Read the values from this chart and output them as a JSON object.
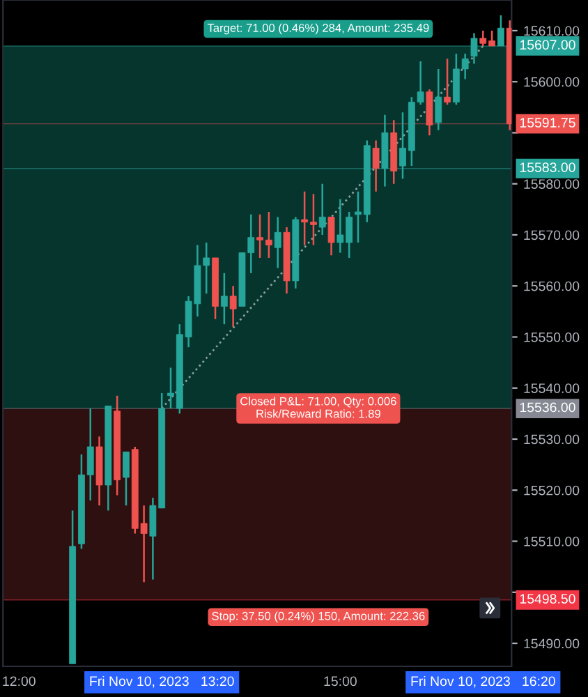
{
  "chart_data": {
    "type": "candlestick",
    "x": [
      12.5,
      12.5833,
      12.6667,
      12.75,
      12.8333,
      12.9167,
      13.0,
      13.0833,
      13.1667,
      13.25,
      13.3333,
      13.4167,
      13.5,
      13.5833,
      13.6667,
      13.75,
      13.8333,
      13.9167,
      14.0,
      14.0833,
      14.1667,
      14.25,
      14.3333,
      14.4167,
      14.5,
      14.5833,
      14.6667,
      14.75,
      14.8333,
      14.9167,
      15.0,
      15.0833,
      15.1667,
      15.25,
      15.3333,
      15.4167,
      15.5,
      15.5833,
      15.6667,
      15.75,
      15.8333,
      15.9167,
      16.0,
      16.0833,
      16.1667,
      16.25,
      16.3333,
      16.4167,
      16.5,
      16.5833
    ],
    "ohlc": [
      [
        15486,
        15516,
        15486,
        15509
      ],
      [
        15509.5,
        15527,
        15508.5,
        15523
      ],
      [
        15523,
        15536,
        15518,
        15528.5
      ],
      [
        15528.5,
        15530.5,
        15517,
        15521
      ],
      [
        15521,
        15536.5,
        15516,
        15536.5
      ],
      [
        15535.5,
        15538.5,
        15519,
        15522
      ],
      [
        15522.5,
        15527.5,
        15517,
        15527.5
      ],
      [
        15528,
        15528.5,
        15511.5,
        15512.5
      ],
      [
        15513.5,
        15517,
        15502,
        15511.5
      ],
      [
        15511,
        15518.5,
        15502.5,
        15517
      ],
      [
        15516.5,
        15539,
        15516.5,
        15536
      ],
      [
        15538.5,
        15544,
        15536,
        15539
      ],
      [
        15536,
        15552.5,
        15535,
        15550.5
      ],
      [
        15550,
        15558,
        15548,
        15557
      ],
      [
        15556.5,
        15568,
        15554,
        15564
      ],
      [
        15564,
        15568.5,
        15558.5,
        15565.5
      ],
      [
        15565.5,
        15565.5,
        15553.5,
        15556
      ],
      [
        15556,
        15562.5,
        15552.5,
        15558
      ],
      [
        15558,
        15560,
        15552,
        15555.5
      ],
      [
        15556,
        15566.5,
        15556,
        15566.5
      ],
      [
        15566.5,
        15574,
        15562.5,
        15569.5
      ],
      [
        15569.5,
        15574,
        15565.5,
        15569
      ],
      [
        15569,
        15574.5,
        15565.5,
        15568
      ],
      [
        15567.5,
        15573.5,
        15563.5,
        15570.5
      ],
      [
        15570.5,
        15571.5,
        15558.5,
        15561
      ],
      [
        15561,
        15573.5,
        15559.5,
        15573
      ],
      [
        15573,
        15578.5,
        15568,
        15572.5
      ],
      [
        15572.5,
        15578,
        15568,
        15572
      ],
      [
        15571.5,
        15580,
        15570,
        15573.5
      ],
      [
        15573.5,
        15573.5,
        15566,
        15568.5
      ],
      [
        15568.5,
        15577,
        15566.5,
        15570
      ],
      [
        15568.5,
        15574.5,
        15565.5,
        15573.5
      ],
      [
        15574,
        15578.5,
        15568.5,
        15574.5
      ],
      [
        15574,
        15588.5,
        15572.5,
        15587.5
      ],
      [
        15587,
        15588.5,
        15578.5,
        15583
      ],
      [
        15583,
        15593.5,
        15579.5,
        15590
      ],
      [
        15590,
        15592.5,
        15580,
        15582.5
      ],
      [
        15583.5,
        15594,
        15581,
        15587
      ],
      [
        15586.5,
        15597,
        15583.5,
        15596
      ],
      [
        15596,
        15604,
        15595.5,
        15598
      ],
      [
        15598,
        15598.5,
        15589.5,
        15591.5
      ],
      [
        15592,
        15602.5,
        15590.5,
        15597
      ],
      [
        15597,
        15604.5,
        15595.5,
        15596
      ],
      [
        15596,
        15605.5,
        15595.5,
        15602.5
      ],
      [
        15602.5,
        15605.5,
        15600.5,
        15604.5
      ],
      [
        15605,
        15609.5,
        15603.5,
        15608.5
      ],
      [
        15608.5,
        15610,
        15607,
        15607.5
      ],
      [
        15608,
        15610,
        15607,
        15607
      ],
      [
        15607,
        15613,
        15607,
        15610.5
      ],
      [
        15610.5,
        15612,
        15590.5,
        15591.75
      ]
    ],
    "colors": [
      "#26a69a",
      "#26a69a",
      "#26a69a",
      "#ef5350",
      "#26a69a",
      "#ef5350",
      "#26a69a",
      "#ef5350",
      "#ef5350",
      "#26a69a",
      "#26a69a",
      "#26a69a",
      "#26a69a",
      "#26a69a",
      "#26a69a",
      "#26a69a",
      "#ef5350",
      "#26a69a",
      "#ef5350",
      "#26a69a",
      "#26a69a",
      "#ef5350",
      "#ef5350",
      "#26a69a",
      "#ef5350",
      "#26a69a",
      "#ef5350",
      "#ef5350",
      "#26a69a",
      "#ef5350",
      "#26a69a",
      "#26a69a",
      "#26a69a",
      "#26a69a",
      "#ef5350",
      "#26a69a",
      "#ef5350",
      "#26a69a",
      "#26a69a",
      "#26a69a",
      "#ef5350",
      "#26a69a",
      "#ef5350",
      "#26a69a",
      "#26a69a",
      "#26a69a",
      "#ef5350",
      "#ef5350",
      "#26a69a",
      "#ef5350"
    ],
    "series": [
      {
        "type": "line",
        "x": [
          13.3333,
          16.3333
        ],
        "values": [
          15536,
          15607
        ],
        "color": "#8a9e9a",
        "line_style": "dotted"
      }
    ],
    "bands": [
      {
        "axis": "y",
        "from": 15536,
        "to": 15607,
        "color": "#06352e",
        "label": "Target: 71.00 (0.46%) 284, Amount: 235.49"
      },
      {
        "axis": "y",
        "from": 15498.5,
        "to": 15536,
        "color": "#2e1010",
        "label": "Stop: 37.50 (0.24%) 150, Amount: 222.36"
      }
    ],
    "ref_lines": [
      {
        "axis": "y",
        "value": 15607,
        "label": "15607.00",
        "color": "#26a69a"
      },
      {
        "axis": "y",
        "value": 15591.75,
        "label": "15591.75",
        "color": "#ef5350"
      },
      {
        "axis": "y",
        "value": 15583,
        "label": "15583.00",
        "color": "#26a69a"
      },
      {
        "axis": "y",
        "value": 15536,
        "label": "15536.00",
        "color": "#868993"
      },
      {
        "axis": "y",
        "value": 15498.5,
        "label": "15498.50",
        "color": "#f23645"
      }
    ],
    "annotations": [
      {
        "text": "Closed P&L: 71.00, Qty: 0.006\nRisk/Reward Ratio: 1.89",
        "y": 15536
      }
    ],
    "xlim": [
      11.85,
      16.6
    ],
    "xticks": [
      {
        "value": 12,
        "label": "12:00"
      },
      {
        "value": 13.3333,
        "label": "Fri Nov 10, 2023   13:20"
      },
      {
        "value": 15,
        "label": "15:00"
      },
      {
        "value": 16.3333,
        "label": "Fri Nov 10, 2023   16:20"
      }
    ],
    "ylim": [
      15485.5,
      15616
    ],
    "yticks": [
      {
        "value": 15490,
        "label": "15490.00"
      },
      {
        "value": 15500,
        "label": null
      },
      {
        "value": 15510,
        "label": "15510.00"
      },
      {
        "value": 15520,
        "label": "15520.00"
      },
      {
        "value": 15530,
        "label": "15530.00"
      },
      {
        "value": 15540,
        "label": "15540.00"
      },
      {
        "value": 15550,
        "label": "15550.00"
      },
      {
        "value": 15560,
        "label": "15560.00"
      },
      {
        "value": 15570,
        "label": "15570.00"
      },
      {
        "value": 15580,
        "label": "15580.00"
      },
      {
        "value": 15590,
        "label": null
      },
      {
        "value": 15600,
        "label": "15600.00"
      },
      {
        "value": 15610,
        "label": "15610.00"
      }
    ],
    "grid": false,
    "legend": false
  }
}
